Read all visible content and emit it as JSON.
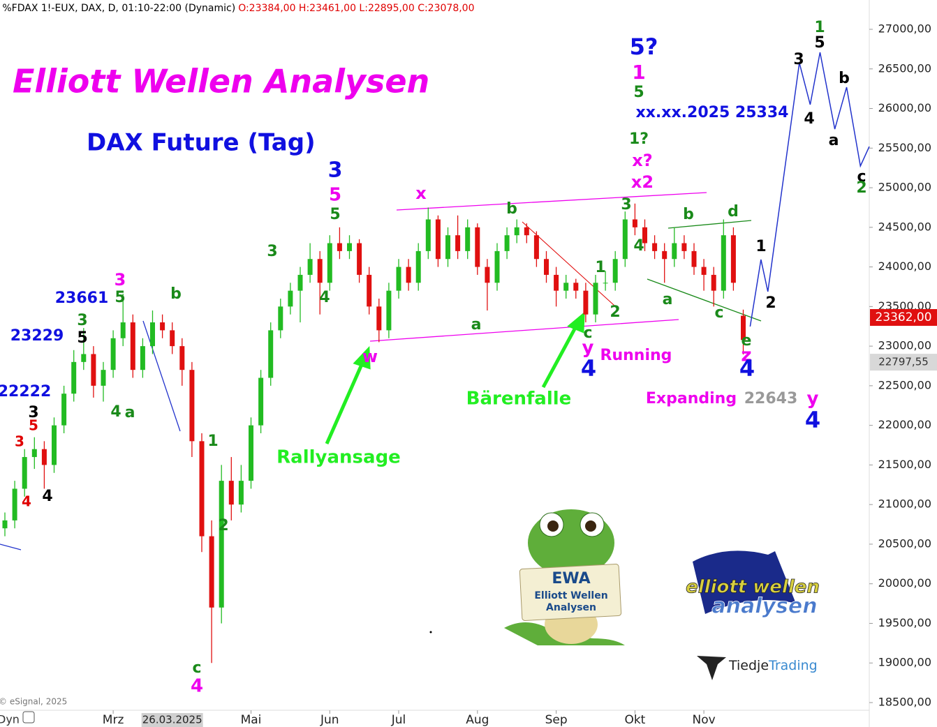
{
  "chart_data": {
    "type": "candlestick",
    "header": "f %FDAX 1!-EUX, DAX, D, 01:10-22:00 (Dynamic)",
    "header_ohlc": "O:23384,00 H:23461,00 L:22895,00 C:23078,00",
    "title": "Elliott Wellen Analysen",
    "subtitle": "DAX Future (Tag)",
    "copyright": "© eSignal, 2025",
    "corner_label": "Dyn",
    "up_color": "#22bb22",
    "down_color": "#e01010",
    "ylim": [
      18500,
      27000
    ],
    "yticks": [
      {
        "value": 27000,
        "label": "27000,00"
      },
      {
        "value": 26500,
        "label": "26500,00"
      },
      {
        "value": 26000,
        "label": "26000,00"
      },
      {
        "value": 25500,
        "label": "25500,00"
      },
      {
        "value": 25000,
        "label": "25000,00"
      },
      {
        "value": 24500,
        "label": "24500,00"
      },
      {
        "value": 24000,
        "label": "24000,00"
      },
      {
        "value": 23500,
        "label": "23500,00"
      },
      {
        "value": 23000,
        "label": "23000,00"
      },
      {
        "value": 22500,
        "label": "22500,00"
      },
      {
        "value": 22000,
        "label": "22000,00"
      },
      {
        "value": 21500,
        "label": "21500,00"
      },
      {
        "value": 21000,
        "label": "21000,00"
      },
      {
        "value": 20500,
        "label": "20500,00"
      },
      {
        "value": 20000,
        "label": "20000,00"
      },
      {
        "value": 19500,
        "label": "19500,00"
      },
      {
        "value": 19000,
        "label": "19000,00"
      },
      {
        "value": 18500,
        "label": "18500,00"
      }
    ],
    "price_tags": [
      {
        "value": 23362,
        "label": "23362,00",
        "color": "#e01010"
      },
      {
        "value": 22797.55,
        "label": "22797,55",
        "color": "#d8d8d8"
      }
    ],
    "xticks": [
      {
        "value": 11,
        "label": "Mrz"
      },
      {
        "value": 25,
        "label": "Mai"
      },
      {
        "value": 33,
        "label": "Jun"
      },
      {
        "value": 40,
        "label": "Jul"
      },
      {
        "value": 48,
        "label": "Aug"
      },
      {
        "value": 56,
        "label": "Sep"
      },
      {
        "value": 64,
        "label": "Okt"
      },
      {
        "value": 71,
        "label": "Nov"
      }
    ],
    "cursor": {
      "value": 17,
      "label": "26.03.2025"
    },
    "ohlc": [
      [
        20700,
        20900,
        20600,
        20800
      ],
      [
        20800,
        21300,
        20700,
        21200
      ],
      [
        21200,
        21700,
        21100,
        21600
      ],
      [
        21600,
        21850,
        21450,
        21700
      ],
      [
        21700,
        21800,
        21200,
        21500
      ],
      [
        21500,
        22100,
        21400,
        22000
      ],
      [
        22000,
        22500,
        21900,
        22400
      ],
      [
        22400,
        22950,
        22300,
        22800
      ],
      [
        22800,
        23229,
        22700,
        22900
      ],
      [
        22900,
        23000,
        22350,
        22500
      ],
      [
        22500,
        22800,
        22300,
        22700
      ],
      [
        22700,
        23200,
        22600,
        23100
      ],
      [
        23100,
        23661,
        23000,
        23300
      ],
      [
        23300,
        23400,
        22600,
        22700
      ],
      [
        22700,
        23100,
        22600,
        23000
      ],
      [
        23000,
        23450,
        22900,
        23300
      ],
      [
        23300,
        23400,
        23100,
        23200
      ],
      [
        23200,
        23300,
        22900,
        23000
      ],
      [
        23000,
        23100,
        22500,
        22700
      ],
      [
        22700,
        22800,
        21600,
        21800
      ],
      [
        21800,
        21900,
        20400,
        20600
      ],
      [
        20600,
        20800,
        19000,
        19700
      ],
      [
        19700,
        21500,
        19500,
        21300
      ],
      [
        21300,
        21600,
        20800,
        21000
      ],
      [
        21000,
        21500,
        20900,
        21300
      ],
      [
        21300,
        22100,
        21200,
        22000
      ],
      [
        22000,
        22700,
        21900,
        22600
      ],
      [
        22600,
        23300,
        22500,
        23200
      ],
      [
        23200,
        23600,
        23100,
        23500
      ],
      [
        23500,
        23800,
        23400,
        23700
      ],
      [
        23700,
        24000,
        23300,
        23900
      ],
      [
        23900,
        24300,
        23800,
        24100
      ],
      [
        24100,
        24200,
        23400,
        23800
      ],
      [
        23800,
        24400,
        23700,
        24300
      ],
      [
        24300,
        24500,
        24100,
        24200
      ],
      [
        24200,
        24400,
        24100,
        24300
      ],
      [
        24300,
        24350,
        23800,
        23900
      ],
      [
        23900,
        24000,
        23400,
        23500
      ],
      [
        23500,
        23600,
        23050,
        23200
      ],
      [
        23200,
        23800,
        23100,
        23700
      ],
      [
        23700,
        24100,
        23600,
        24000
      ],
      [
        24000,
        24100,
        23700,
        23800
      ],
      [
        23800,
        24300,
        23700,
        24200
      ],
      [
        24200,
        24750,
        24100,
        24600
      ],
      [
        24600,
        24650,
        24000,
        24100
      ],
      [
        24100,
        24500,
        24000,
        24400
      ],
      [
        24400,
        24650,
        24100,
        24200
      ],
      [
        24200,
        24600,
        24100,
        24500
      ],
      [
        24500,
        24550,
        23900,
        24000
      ],
      [
        24000,
        24100,
        23450,
        23800
      ],
      [
        23800,
        24300,
        23700,
        24200
      ],
      [
        24200,
        24500,
        24100,
        24400
      ],
      [
        24400,
        24600,
        24300,
        24500
      ],
      [
        24500,
        24550,
        24300,
        24400
      ],
      [
        24400,
        24450,
        24000,
        24100
      ],
      [
        24100,
        24200,
        23800,
        23900
      ],
      [
        23900,
        24000,
        23500,
        23700
      ],
      [
        23700,
        23900,
        23600,
        23800
      ],
      [
        23800,
        23850,
        23600,
        23700
      ],
      [
        23700,
        23800,
        23300,
        23400
      ],
      [
        23400,
        23900,
        23300,
        23800
      ],
      [
        23800,
        23950,
        23700,
        23800
      ],
      [
        23800,
        24200,
        23700,
        24100
      ],
      [
        24100,
        24700,
        24000,
        24600
      ],
      [
        24600,
        24800,
        24400,
        24500
      ],
      [
        24500,
        24600,
        24200,
        24300
      ],
      [
        24300,
        24400,
        24100,
        24200
      ],
      [
        24200,
        24300,
        23800,
        24100
      ],
      [
        24100,
        24500,
        24000,
        24300
      ],
      [
        24300,
        24400,
        24100,
        24200
      ],
      [
        24200,
        24300,
        23900,
        24000
      ],
      [
        24000,
        24100,
        23700,
        23900
      ],
      [
        23900,
        24000,
        23500,
        23700
      ],
      [
        23700,
        24600,
        23600,
        24400
      ],
      [
        24400,
        24500,
        23700,
        23800
      ],
      [
        23384,
        23461,
        22895,
        23078
      ]
    ],
    "projection": {
      "color": "#2233cc",
      "x": [
        75.7,
        76.8,
        77.5,
        80.7,
        81.8,
        82.8,
        84.3,
        85.5,
        86.9,
        87.8
      ],
      "values": [
        23248,
        24093,
        23688,
        26577,
        26049,
        26709,
        25740,
        26269,
        25274,
        25520
      ]
    },
    "annotations": [
      {
        "text": "23661",
        "color": "#1010e0"
      },
      {
        "text": "23229",
        "color": "#1010e0"
      },
      {
        "text": "22222",
        "color": "#1010e0"
      },
      {
        "text": "3",
        "color": "#ee00ee"
      },
      {
        "text": "5",
        "color": "#1a8a1a"
      },
      {
        "text": "b",
        "color": "#1a8a1a"
      },
      {
        "text": "3",
        "color": "#1a8a1a"
      },
      {
        "text": "5",
        "color": "#000000"
      },
      {
        "text": "4",
        "color": "#1a8a1a"
      },
      {
        "text": "a",
        "color": "#1a8a1a"
      },
      {
        "text": "3",
        "color": "#000000"
      },
      {
        "text": "5",
        "color": "#e00000"
      },
      {
        "text": "3",
        "color": "#e00000"
      },
      {
        "text": "4",
        "color": "#e00000"
      },
      {
        "text": "4",
        "color": "#000000"
      },
      {
        "text": "1",
        "color": "#1a8a1a"
      },
      {
        "text": "2",
        "color": "#1a8a1a"
      },
      {
        "text": "c",
        "color": "#1a8a1a"
      },
      {
        "text": "4",
        "color": "#ee00ee"
      },
      {
        "text": "3",
        "color": "#1a8a1a"
      },
      {
        "text": "4",
        "color": "#1a8a1a"
      },
      {
        "text": "3",
        "color": "#1010e0"
      },
      {
        "text": "5",
        "color": "#ee00ee"
      },
      {
        "text": "5",
        "color": "#1a8a1a"
      },
      {
        "text": "w",
        "color": "#ee00ee"
      },
      {
        "text": "x",
        "color": "#ee00ee"
      },
      {
        "text": "a",
        "color": "#1a8a1a"
      },
      {
        "text": "b",
        "color": "#1a8a1a"
      },
      {
        "text": "Rallyansage",
        "color": "#22ee22"
      },
      {
        "text": "Bärenfalle",
        "color": "#22ee22"
      },
      {
        "text": "c",
        "color": "#1a8a1a"
      },
      {
        "text": "y",
        "color": "#ee00ee"
      },
      {
        "text": "4",
        "color": "#1010e0"
      },
      {
        "text": "Running",
        "color": "#ee00ee"
      },
      {
        "text": "1",
        "color": "#1a8a1a"
      },
      {
        "text": "2",
        "color": "#1a8a1a"
      },
      {
        "text": "3",
        "color": "#1a8a1a"
      },
      {
        "text": "4",
        "color": "#1a8a1a"
      },
      {
        "text": "1?",
        "color": "#1a8a1a"
      },
      {
        "text": "x?",
        "color": "#ee00ee"
      },
      {
        "text": "x2",
        "color": "#ee00ee"
      },
      {
        "text": "5?",
        "color": "#1010e0"
      },
      {
        "text": "1",
        "color": "#ee00ee"
      },
      {
        "text": "5",
        "color": "#1a8a1a"
      },
      {
        "text": "xx.xx.2025 25334",
        "color": "#1010e0"
      },
      {
        "text": "b",
        "color": "#1a8a1a"
      },
      {
        "text": "d",
        "color": "#1a8a1a"
      },
      {
        "text": "a",
        "color": "#1a8a1a"
      },
      {
        "text": "c",
        "color": "#1a8a1a"
      },
      {
        "text": "e",
        "color": "#1a8a1a"
      },
      {
        "text": "z",
        "color": "#ee00ee"
      },
      {
        "text": "4",
        "color": "#1010e0"
      },
      {
        "text": "Expanding",
        "color": "#ee00ee"
      },
      {
        "text": "22643",
        "color": "#999999"
      },
      {
        "text": "y",
        "color": "#ee00ee"
      },
      {
        "text": "4",
        "color": "#1010e0"
      },
      {
        "text": "1",
        "color": "#000000"
      },
      {
        "text": "2",
        "color": "#000000"
      },
      {
        "text": "3",
        "color": "#000000"
      },
      {
        "text": "4",
        "color": "#000000"
      },
      {
        "text": "1",
        "color": "#1a8a1a"
      },
      {
        "text": "5",
        "color": "#000000"
      },
      {
        "text": "b",
        "color": "#000000"
      },
      {
        "text": "a",
        "color": "#000000"
      },
      {
        "text": "c",
        "color": "#000000"
      },
      {
        "text": "2",
        "color": "#1a8a1a"
      }
    ],
    "mascot_sign": [
      "EWA",
      "Elliott Wellen",
      "Analysen"
    ],
    "logo_text": [
      "elliott wellen",
      "analysen"
    ],
    "sponsor": [
      "Tiedje",
      "Trading"
    ]
  }
}
